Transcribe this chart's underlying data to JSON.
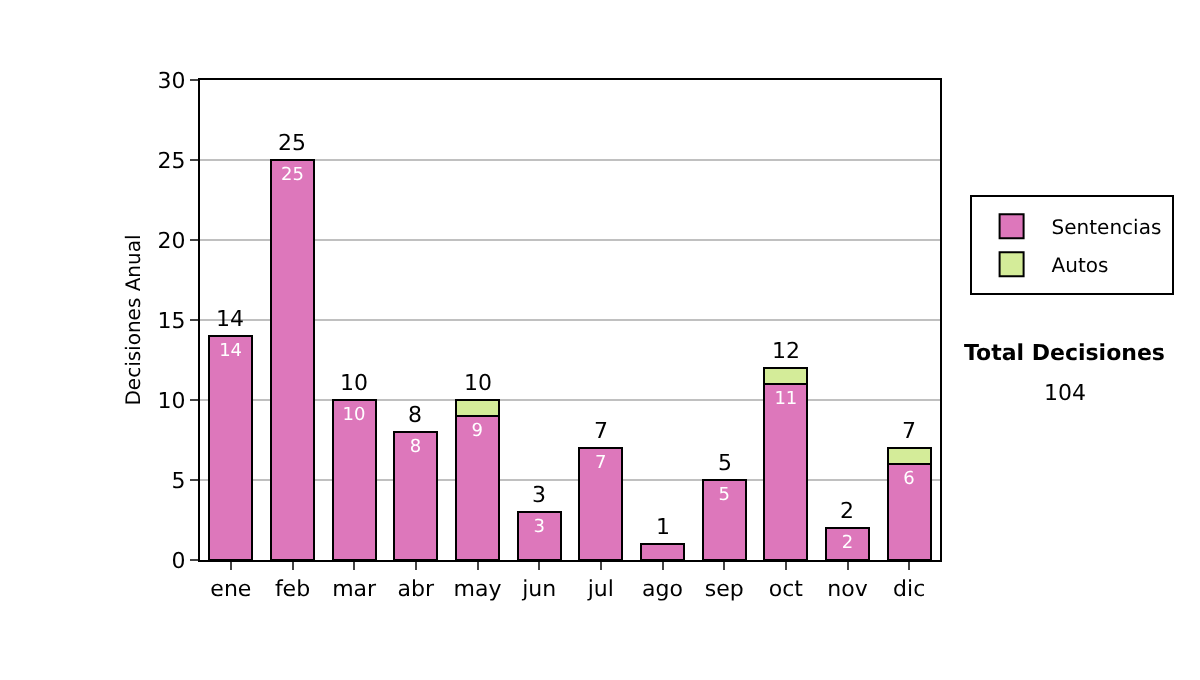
{
  "chart_data": {
    "type": "bar",
    "stacked": true,
    "ylabel": "Decisiones Anual",
    "categories": [
      "ene",
      "feb",
      "mar",
      "abr",
      "may",
      "jun",
      "jul",
      "ago",
      "sep",
      "oct",
      "nov",
      "dic"
    ],
    "series": [
      {
        "name": "Sentencias",
        "color": "#dd77bb",
        "values": [
          14,
          25,
          10,
          8,
          9,
          3,
          7,
          1,
          5,
          11,
          2,
          6
        ],
        "value_labels": [
          "14",
          "25",
          "10",
          "8",
          "9",
          "3",
          "7",
          null,
          "5",
          "11",
          "2",
          "6"
        ]
      },
      {
        "name": "Autos",
        "color": "#d4ec99",
        "values": [
          null,
          null,
          null,
          null,
          1,
          null,
          null,
          null,
          null,
          1,
          null,
          1
        ]
      }
    ],
    "totals": [
      "14",
      "25",
      "10",
      "8",
      "10",
      "3",
      "7",
      "1",
      "5",
      "12",
      "2",
      "7"
    ],
    "ylim": [
      0,
      30
    ],
    "yticks": [
      0,
      5,
      10,
      15,
      20,
      25,
      30
    ],
    "grid": "y",
    "legend": "right",
    "annotations": [
      "Total Decisiones",
      "104"
    ]
  }
}
